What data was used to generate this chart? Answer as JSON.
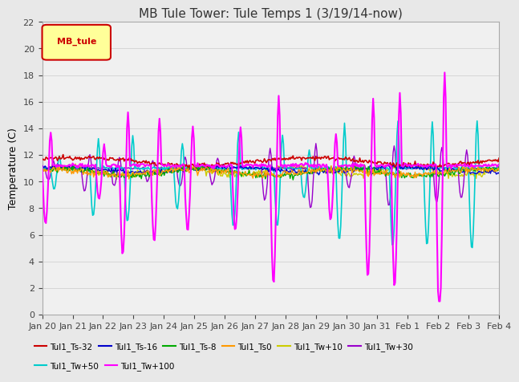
{
  "title": "MB Tule Tower: Tule Temps 1 (3/19/14-now)",
  "ylabel": "Temperature (C)",
  "ylim": [
    0,
    22
  ],
  "yticks": [
    0,
    2,
    4,
    6,
    8,
    10,
    12,
    14,
    16,
    18,
    20,
    22
  ],
  "xlabel_dates": [
    "Jan 20",
    "Jan 21",
    "Jan 22",
    "Jan 23",
    "Jan 24",
    "Jan 25",
    "Jan 26",
    "Jan 27",
    "Jan 28",
    "Jan 29",
    "Jan 30",
    "Jan 31",
    "Feb 1",
    "Feb 2",
    "Feb 3",
    "Feb 4"
  ],
  "n_points": 480,
  "date_range_days": 16,
  "background_color": "#e8e8e8",
  "plot_bg_color": "#f0f0f0",
  "legend_box": {
    "label": "MB_tule",
    "facecolor": "#ffff99",
    "edgecolor": "#cc0000",
    "textcolor": "#cc0000"
  },
  "series": [
    {
      "label": "Tul1_Ts-32",
      "color": "#cc0000",
      "lw": 1.2,
      "zorder": 5
    },
    {
      "label": "Tul1_Ts-16",
      "color": "#0000cc",
      "lw": 1.0,
      "zorder": 4
    },
    {
      "label": "Tul1_Ts-8",
      "color": "#00aa00",
      "lw": 1.0,
      "zorder": 4
    },
    {
      "label": "Tul1_Ts0",
      "color": "#ff9900",
      "lw": 1.0,
      "zorder": 4
    },
    {
      "label": "Tul1_Tw+10",
      "color": "#cccc00",
      "lw": 1.0,
      "zorder": 3
    },
    {
      "label": "Tul1_Tw+30",
      "color": "#9900cc",
      "lw": 1.0,
      "zorder": 3
    },
    {
      "label": "Tul1_Tw+50",
      "color": "#00cccc",
      "lw": 1.2,
      "zorder": 3
    },
    {
      "label": "Tul1_Tw+100",
      "color": "#ff00ff",
      "lw": 1.5,
      "zorder": 6
    }
  ]
}
